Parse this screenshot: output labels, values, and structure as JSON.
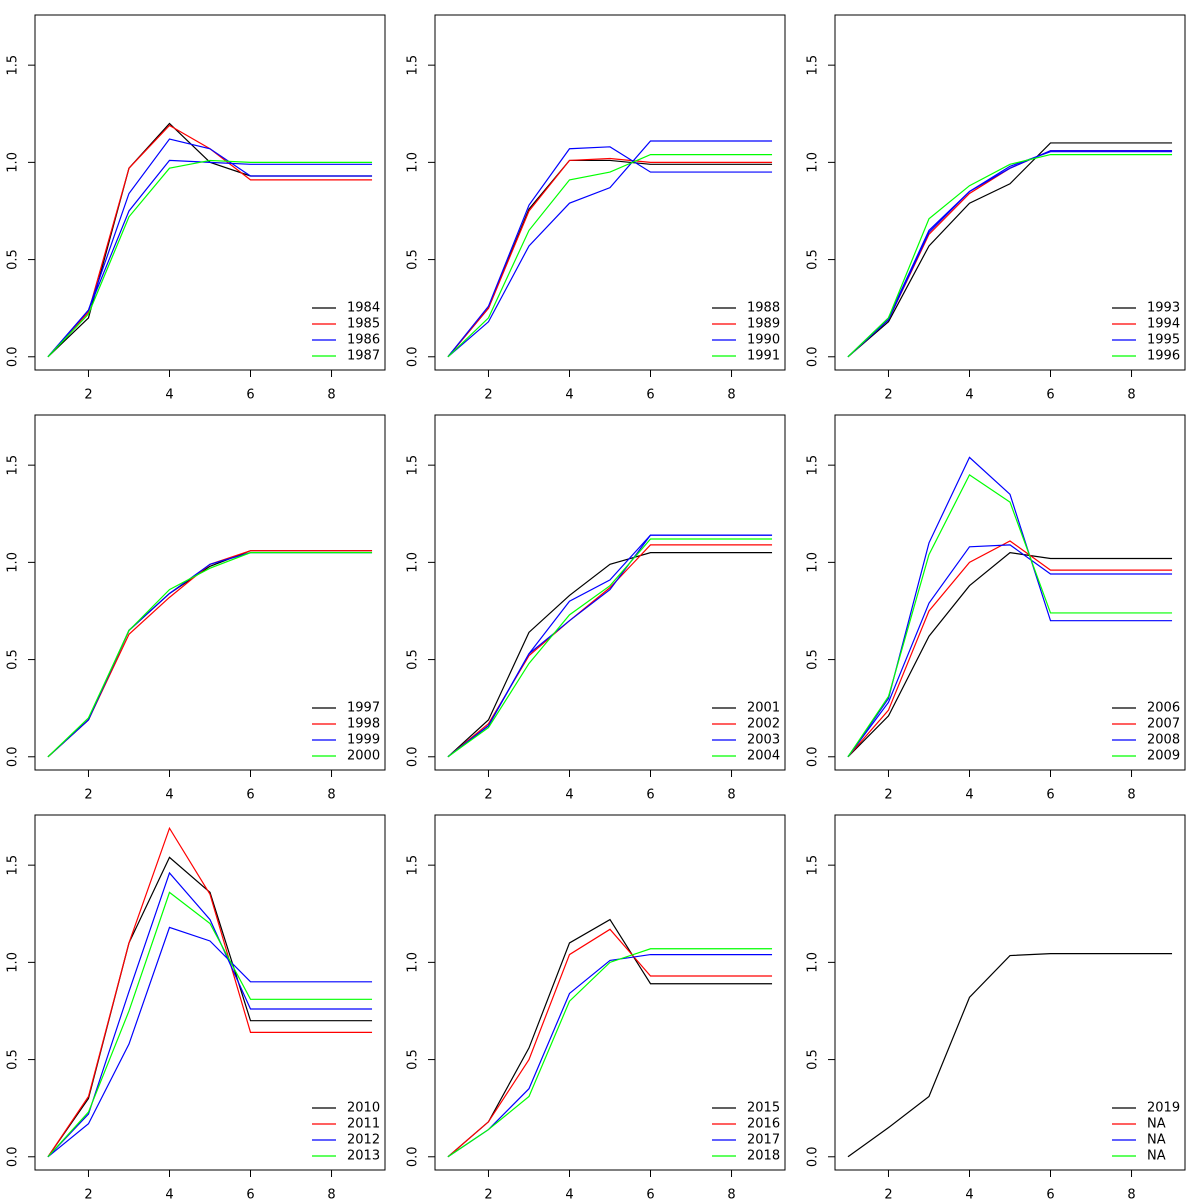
{
  "chart_data": [
    {
      "type": "line",
      "x": [
        1,
        2,
        3,
        4,
        5,
        6,
        7,
        8,
        9
      ],
      "xlim": [
        0.68,
        9.32
      ],
      "ylim": [
        -0.068,
        1.758
      ],
      "xticks": [
        2,
        4,
        6,
        8
      ],
      "yticks": [
        {
          "value": 0,
          "label": "0.0"
        },
        0.5,
        {
          "value": 1,
          "label": "1.0"
        },
        1.5
      ],
      "legend_position": "bottomright",
      "series": [
        {
          "color": "#000000",
          "values": [
            0,
            0.2,
            0.97,
            1.2,
            1.0,
            0.93,
            0.93,
            0.93,
            0.93
          ]
        },
        {
          "color": "#ff0000",
          "values": [
            0,
            0.23,
            0.97,
            1.19,
            1.07,
            0.91,
            0.91,
            0.91,
            0.91
          ]
        },
        {
          "color": "#0000ff",
          "values": [
            0,
            0.24,
            0.84,
            1.12,
            1.07,
            0.93,
            0.93,
            0.93,
            0.93
          ]
        },
        {
          "color": "#0000ff",
          "values": [
            0,
            0.24,
            0.75,
            1.01,
            1.0,
            0.99,
            0.99,
            0.99,
            0.99
          ]
        },
        {
          "color": "#00ff00",
          "values": [
            0,
            0.22,
            0.72,
            0.97,
            1.01,
            1.0,
            1.0,
            1.0,
            1.0
          ]
        }
      ],
      "legend": [
        {
          "label": "1984",
          "color": "#000000"
        },
        {
          "label": "1985",
          "color": "#ff0000"
        },
        {
          "label": "1986",
          "color": "#0000ff"
        },
        {
          "label": "1987",
          "color": "#00ff00"
        }
      ]
    },
    {
      "type": "line",
      "x": [
        1,
        2,
        3,
        4,
        5,
        6,
        7,
        8,
        9
      ],
      "xlim": [
        0.68,
        9.32
      ],
      "ylim": [
        -0.068,
        1.758
      ],
      "xticks": [
        2,
        4,
        6,
        8
      ],
      "yticks": [
        {
          "value": 0,
          "label": "0.0"
        },
        0.5,
        {
          "value": 1,
          "label": "1.0"
        },
        1.5
      ],
      "legend_position": "bottomright",
      "series": [
        {
          "color": "#000000",
          "values": [
            0,
            0.25,
            0.76,
            1.01,
            1.01,
            0.99,
            0.99,
            0.99,
            0.99
          ]
        },
        {
          "color": "#ff0000",
          "values": [
            0,
            0.25,
            0.75,
            1.01,
            1.02,
            1.0,
            1.0,
            1.0,
            1.0
          ]
        },
        {
          "color": "#0000ff",
          "values": [
            0,
            0.26,
            0.78,
            1.07,
            1.08,
            0.95,
            0.95,
            0.95,
            0.95
          ]
        },
        {
          "color": "#0000ff",
          "values": [
            0,
            0.18,
            0.57,
            0.79,
            0.87,
            1.11,
            1.11,
            1.11,
            1.11
          ]
        },
        {
          "color": "#00ff00",
          "values": [
            0,
            0.2,
            0.65,
            0.91,
            0.95,
            1.04,
            1.04,
            1.04,
            1.04
          ]
        }
      ],
      "legend": [
        {
          "label": "1988",
          "color": "#000000"
        },
        {
          "label": "1989",
          "color": "#ff0000"
        },
        {
          "label": "1990",
          "color": "#0000ff"
        },
        {
          "label": "1991",
          "color": "#00ff00"
        }
      ]
    },
    {
      "type": "line",
      "x": [
        1,
        2,
        3,
        4,
        5,
        6,
        7,
        8,
        9
      ],
      "xlim": [
        0.68,
        9.32
      ],
      "ylim": [
        -0.068,
        1.758
      ],
      "xticks": [
        2,
        4,
        6,
        8
      ],
      "yticks": [
        {
          "value": 0,
          "label": "0.0"
        },
        0.5,
        {
          "value": 1,
          "label": "1.0"
        },
        1.5
      ],
      "legend_position": "bottomright",
      "series": [
        {
          "color": "#000000",
          "values": [
            0,
            0.18,
            0.57,
            0.79,
            0.89,
            1.1,
            1.1,
            1.1,
            1.1
          ]
        },
        {
          "color": "#ff0000",
          "values": [
            0,
            0.19,
            0.63,
            0.84,
            0.97,
            1.06,
            1.06,
            1.06,
            1.06
          ]
        },
        {
          "color": "#0000ff",
          "values": [
            0,
            0.19,
            0.64,
            0.85,
            0.97,
            1.06,
            1.06,
            1.06,
            1.06
          ]
        },
        {
          "color": "#0000ff",
          "values": [
            0,
            0.2,
            0.65,
            0.85,
            0.98,
            1.055,
            1.055,
            1.055,
            1.055
          ]
        },
        {
          "color": "#00ff00",
          "values": [
            0,
            0.2,
            0.71,
            0.88,
            0.99,
            1.04,
            1.04,
            1.04,
            1.04
          ]
        }
      ],
      "legend": [
        {
          "label": "1993",
          "color": "#000000"
        },
        {
          "label": "1994",
          "color": "#ff0000"
        },
        {
          "label": "1995",
          "color": "#0000ff"
        },
        {
          "label": "1996",
          "color": "#00ff00"
        }
      ]
    },
    {
      "type": "line",
      "x": [
        1,
        2,
        3,
        4,
        5,
        6,
        7,
        8,
        9
      ],
      "xlim": [
        0.68,
        9.32
      ],
      "ylim": [
        -0.068,
        1.758
      ],
      "xticks": [
        2,
        4,
        6,
        8
      ],
      "yticks": [
        {
          "value": 0,
          "label": "0.0"
        },
        0.5,
        {
          "value": 1,
          "label": "1.0"
        },
        1.5
      ],
      "legend_position": "bottomright",
      "series": [
        {
          "color": "#000000",
          "values": [
            0,
            0.19,
            0.65,
            0.84,
            0.98,
            1.06,
            1.06,
            1.06,
            1.06
          ]
        },
        {
          "color": "#ff0000",
          "values": [
            0,
            0.19,
            0.63,
            0.82,
            0.99,
            1.06,
            1.06,
            1.06,
            1.06
          ]
        },
        {
          "color": "#0000ff",
          "values": [
            0,
            0.19,
            0.65,
            0.84,
            0.99,
            1.05,
            1.05,
            1.05,
            1.05
          ]
        },
        {
          "color": "#00ff00",
          "values": [
            0,
            0.2,
            0.65,
            0.86,
            0.97,
            1.05,
            1.05,
            1.05,
            1.05
          ]
        }
      ],
      "legend": [
        {
          "label": "1997",
          "color": "#000000"
        },
        {
          "label": "1998",
          "color": "#ff0000"
        },
        {
          "label": "1999",
          "color": "#0000ff"
        },
        {
          "label": "2000",
          "color": "#00ff00"
        }
      ]
    },
    {
      "type": "line",
      "x": [
        1,
        2,
        3,
        4,
        5,
        6,
        7,
        8,
        9
      ],
      "xlim": [
        0.68,
        9.32
      ],
      "ylim": [
        -0.068,
        1.758
      ],
      "xticks": [
        2,
        4,
        6,
        8
      ],
      "yticks": [
        {
          "value": 0,
          "label": "0.0"
        },
        0.5,
        {
          "value": 1,
          "label": "1.0"
        },
        1.5
      ],
      "legend_position": "bottomright",
      "series": [
        {
          "color": "#000000",
          "values": [
            0,
            0.19,
            0.64,
            0.83,
            0.99,
            1.05,
            1.05,
            1.05,
            1.05
          ]
        },
        {
          "color": "#ff0000",
          "values": [
            0,
            0.17,
            0.52,
            0.7,
            0.87,
            1.09,
            1.09,
            1.09,
            1.09
          ]
        },
        {
          "color": "#0000ff",
          "values": [
            0,
            0.16,
            0.53,
            0.8,
            0.91,
            1.14,
            1.14,
            1.14,
            1.14
          ]
        },
        {
          "color": "#0000ff",
          "values": [
            0,
            0.16,
            0.53,
            0.7,
            0.86,
            1.14,
            1.14,
            1.14,
            1.14
          ]
        },
        {
          "color": "#00ff00",
          "values": [
            0,
            0.15,
            0.48,
            0.73,
            0.88,
            1.12,
            1.12,
            1.12,
            1.12
          ]
        }
      ],
      "legend": [
        {
          "label": "2001",
          "color": "#000000"
        },
        {
          "label": "2002",
          "color": "#ff0000"
        },
        {
          "label": "2003",
          "color": "#0000ff"
        },
        {
          "label": "2004",
          "color": "#00ff00"
        }
      ]
    },
    {
      "type": "line",
      "x": [
        1,
        2,
        3,
        4,
        5,
        6,
        7,
        8,
        9
      ],
      "xlim": [
        0.68,
        9.32
      ],
      "ylim": [
        -0.068,
        1.758
      ],
      "xticks": [
        2,
        4,
        6,
        8
      ],
      "yticks": [
        {
          "value": 0,
          "label": "0.0"
        },
        0.5,
        {
          "value": 1,
          "label": "1.0"
        },
        1.5
      ],
      "legend_position": "bottomright",
      "series": [
        {
          "color": "#000000",
          "values": [
            0,
            0.21,
            0.62,
            0.88,
            1.05,
            1.02,
            1.02,
            1.02,
            1.02
          ]
        },
        {
          "color": "#ff0000",
          "values": [
            0,
            0.24,
            0.75,
            1.0,
            1.11,
            0.96,
            0.96,
            0.96,
            0.96
          ]
        },
        {
          "color": "#0000ff",
          "values": [
            0,
            0.28,
            0.79,
            1.08,
            1.09,
            0.94,
            0.94,
            0.94,
            0.94
          ]
        },
        {
          "color": "#0000ff",
          "values": [
            0,
            0.3,
            1.1,
            1.54,
            1.35,
            0.7,
            0.7,
            0.7,
            0.7
          ]
        },
        {
          "color": "#00ff00",
          "values": [
            0,
            0.31,
            1.04,
            1.45,
            1.31,
            0.74,
            0.74,
            0.74,
            0.74
          ]
        }
      ],
      "legend": [
        {
          "label": "2006",
          "color": "#000000"
        },
        {
          "label": "2007",
          "color": "#ff0000"
        },
        {
          "label": "2008",
          "color": "#0000ff"
        },
        {
          "label": "2009",
          "color": "#00ff00"
        }
      ]
    },
    {
      "type": "line",
      "x": [
        1,
        2,
        3,
        4,
        5,
        6,
        7,
        8,
        9
      ],
      "xlim": [
        0.68,
        9.32
      ],
      "ylim": [
        -0.068,
        1.758
      ],
      "xticks": [
        2,
        4,
        6,
        8
      ],
      "yticks": [
        {
          "value": 0,
          "label": "0.0"
        },
        0.5,
        {
          "value": 1,
          "label": "1.0"
        },
        1.5
      ],
      "legend_position": "bottomright",
      "series": [
        {
          "color": "#000000",
          "values": [
            0,
            0.3,
            1.1,
            1.54,
            1.36,
            0.7,
            0.7,
            0.7,
            0.7
          ]
        },
        {
          "color": "#ff0000",
          "values": [
            0,
            0.31,
            1.1,
            1.69,
            1.35,
            0.64,
            0.64,
            0.64,
            0.64
          ]
        },
        {
          "color": "#0000ff",
          "values": [
            0,
            0.22,
            0.85,
            1.46,
            1.22,
            0.76,
            0.76,
            0.76,
            0.76
          ]
        },
        {
          "color": "#0000ff",
          "values": [
            0,
            0.17,
            0.58,
            1.18,
            1.11,
            0.9,
            0.9,
            0.9,
            0.9
          ]
        },
        {
          "color": "#00ff00",
          "values": [
            0,
            0.23,
            0.75,
            1.36,
            1.2,
            0.81,
            0.81,
            0.81,
            0.81
          ]
        }
      ],
      "legend": [
        {
          "label": "2010",
          "color": "#000000"
        },
        {
          "label": "2011",
          "color": "#ff0000"
        },
        {
          "label": "2012",
          "color": "#0000ff"
        },
        {
          "label": "2013",
          "color": "#00ff00"
        }
      ]
    },
    {
      "type": "line",
      "x": [
        1,
        2,
        3,
        4,
        5,
        6,
        7,
        8,
        9
      ],
      "xlim": [
        0.68,
        9.32
      ],
      "ylim": [
        -0.068,
        1.758
      ],
      "xticks": [
        2,
        4,
        6,
        8
      ],
      "yticks": [
        {
          "value": 0,
          "label": "0.0"
        },
        0.5,
        {
          "value": 1,
          "label": "1.0"
        },
        1.5
      ],
      "legend_position": "bottomright",
      "series": [
        {
          "color": "#000000",
          "values": [
            0,
            0.18,
            0.56,
            1.1,
            1.22,
            0.89,
            0.89,
            0.89,
            0.89
          ]
        },
        {
          "color": "#ff0000",
          "values": [
            0,
            0.18,
            0.5,
            1.04,
            1.17,
            0.93,
            0.93,
            0.93,
            0.93
          ]
        },
        {
          "color": "#0000ff",
          "values": [
            0,
            0.14,
            0.35,
            0.84,
            1.01,
            1.04,
            1.04,
            1.04,
            1.04
          ]
        },
        {
          "color": "#00ff00",
          "values": [
            0,
            0.14,
            0.31,
            0.8,
            1.0,
            1.07,
            1.07,
            1.07,
            1.07
          ]
        }
      ],
      "legend": [
        {
          "label": "2015",
          "color": "#000000"
        },
        {
          "label": "2016",
          "color": "#ff0000"
        },
        {
          "label": "2017",
          "color": "#0000ff"
        },
        {
          "label": "2018",
          "color": "#00ff00"
        }
      ]
    },
    {
      "type": "line",
      "x": [
        1,
        2,
        3,
        4,
        5,
        6,
        7,
        8,
        9
      ],
      "xlim": [
        0.68,
        9.32
      ],
      "ylim": [
        -0.068,
        1.758
      ],
      "xticks": [
        2,
        4,
        6,
        8
      ],
      "yticks": [
        {
          "value": 0,
          "label": "0.0"
        },
        0.5,
        {
          "value": 1,
          "label": "1.0"
        },
        1.5
      ],
      "legend_position": "bottomright",
      "series": [
        {
          "color": "#000000",
          "values": [
            0,
            0.15,
            0.31,
            0.82,
            1.035,
            1.045,
            1.045,
            1.045,
            1.045
          ]
        }
      ],
      "legend": [
        {
          "label": "2019",
          "color": "#000000"
        },
        {
          "label": "NA",
          "color": "#ff0000"
        },
        {
          "label": "NA",
          "color": "#0000ff"
        },
        {
          "label": "NA",
          "color": "#00ff00"
        }
      ]
    }
  ]
}
